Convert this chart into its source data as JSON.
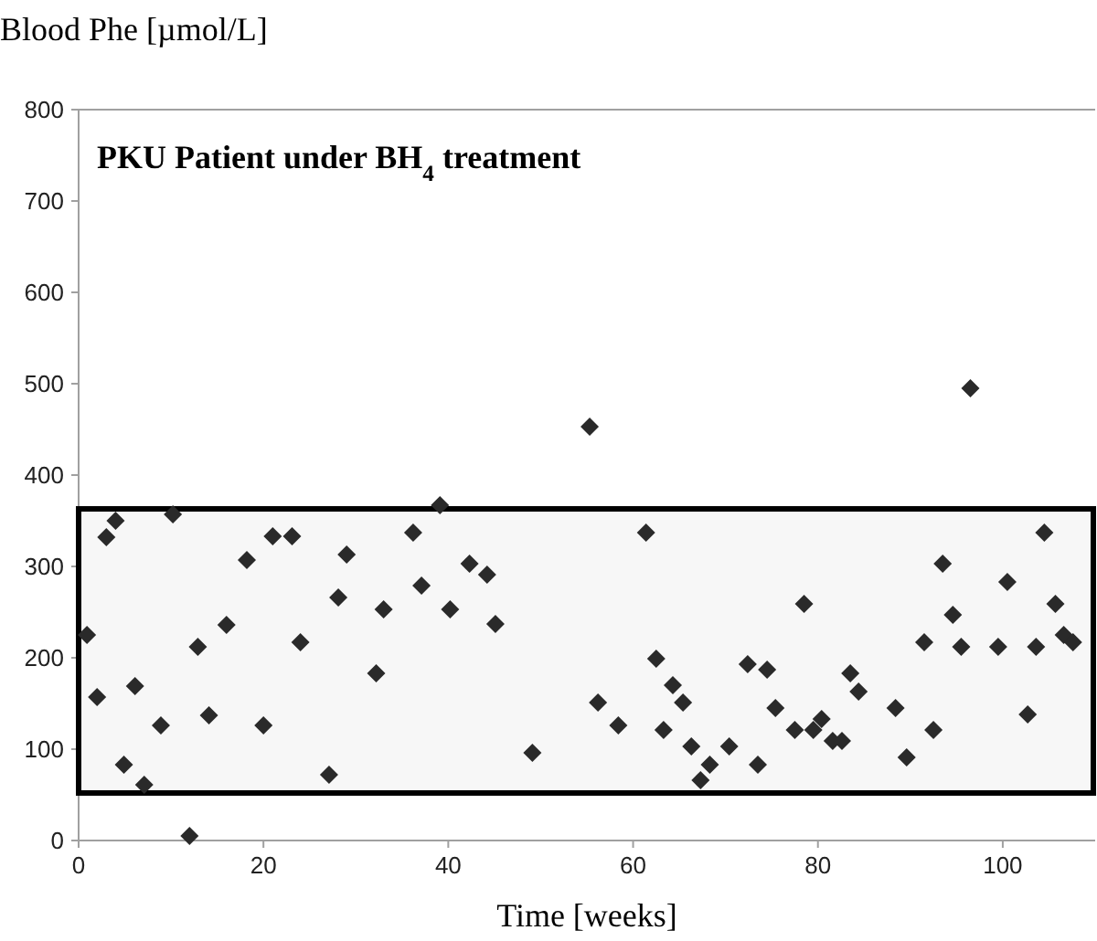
{
  "chart_data": {
    "type": "scatter",
    "title": "PKU Patient under BH$_{4}$ treatment",
    "xlabel": "Time [weeks]",
    "ylabel": "Blood Phe [µmol/L]",
    "xlim": [
      0,
      110
    ],
    "xticks": [
      0,
      20,
      40,
      60,
      80,
      100
    ],
    "ylim": [
      0,
      800
    ],
    "yticks": [
      0,
      100,
      200,
      300,
      400,
      500,
      600,
      700,
      800
    ],
    "grid": false,
    "marker": "diamond",
    "bands": [
      {
        "axis": "y",
        "from": 52,
        "to": 363,
        "color": "#000000"
      }
    ],
    "series": [
      {
        "color": "#2a2a2a",
        "x": [
          0.9,
          2.0,
          3.0,
          4.0,
          4.9,
          6.1,
          7.1,
          8.9,
          10.2,
          12.0,
          12.9,
          14.1,
          16.0,
          18.2,
          20.0,
          21.0,
          23.1,
          24.0,
          27.1,
          28.1,
          29.0,
          32.2,
          33.0,
          36.2,
          37.1,
          39.1,
          40.2,
          42.3,
          44.2,
          45.1,
          49.1,
          55.3,
          56.2,
          58.4,
          61.4,
          62.5,
          63.3,
          64.3,
          65.4,
          66.3,
          67.3,
          68.3,
          70.4,
          72.4,
          73.5,
          74.5,
          75.4,
          77.5,
          78.5,
          79.5,
          80.4,
          81.6,
          82.6,
          83.5,
          84.4,
          88.4,
          89.6,
          91.5,
          92.5,
          93.5,
          94.6,
          95.5,
          96.5,
          99.5,
          100.5,
          102.7,
          103.6,
          104.5,
          105.7,
          106.6,
          107.6
        ],
        "values": [
          225,
          157,
          332,
          350,
          83,
          169,
          61,
          126,
          357,
          5,
          212,
          137,
          236,
          307,
          126,
          333,
          333,
          217,
          72,
          266,
          313,
          183,
          253,
          337,
          279,
          367,
          253,
          303,
          291,
          237,
          96,
          453,
          151,
          126,
          337,
          199,
          121,
          170,
          151,
          103,
          66,
          83,
          103,
          193,
          83,
          187,
          145,
          121,
          259,
          121,
          133,
          109,
          109,
          183,
          163,
          145,
          91,
          217,
          121,
          303,
          247,
          212,
          495,
          212,
          283,
          138,
          212,
          337,
          259,
          225,
          217
        ]
      }
    ]
  }
}
